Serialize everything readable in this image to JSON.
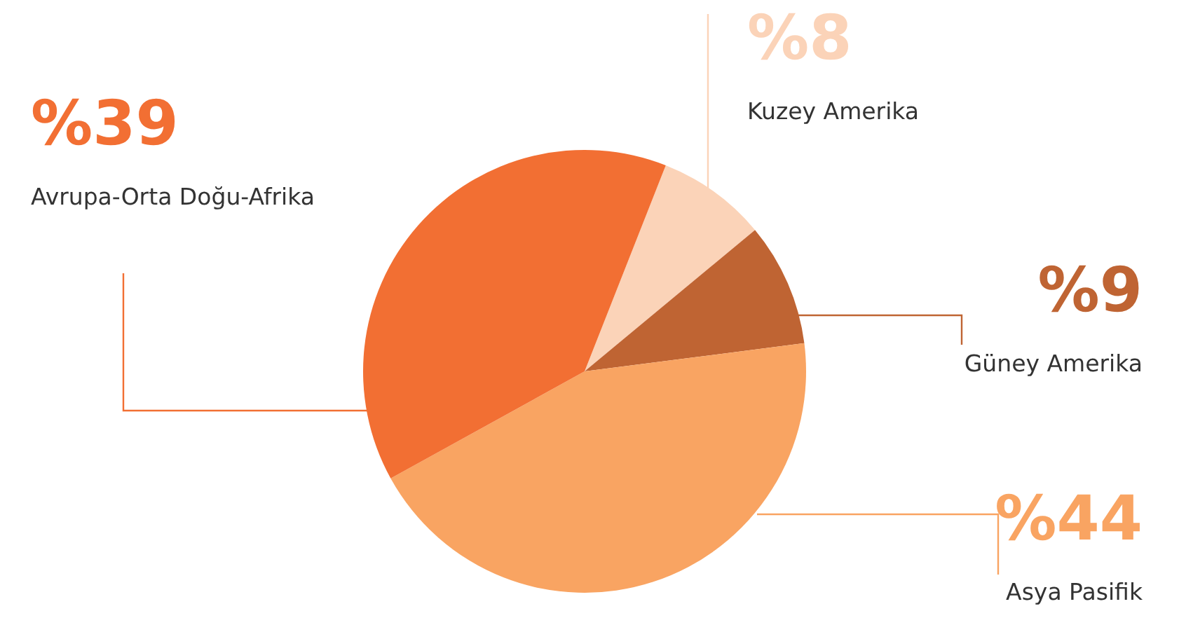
{
  "chart_data": {
    "type": "pie",
    "categories": [
      "Kuzey Amerika",
      "Güney Amerika",
      "Asya Pasifik",
      "Avrupa-Orta Doğu-Afrika"
    ],
    "values": [
      8,
      9,
      44,
      39
    ],
    "colors": [
      "#fbd3b8",
      "#bf6433",
      "#f9a462",
      "#f26f33"
    ],
    "value_labels": [
      "%8",
      "%9",
      "%44",
      "%39"
    ],
    "legend": false
  }
}
